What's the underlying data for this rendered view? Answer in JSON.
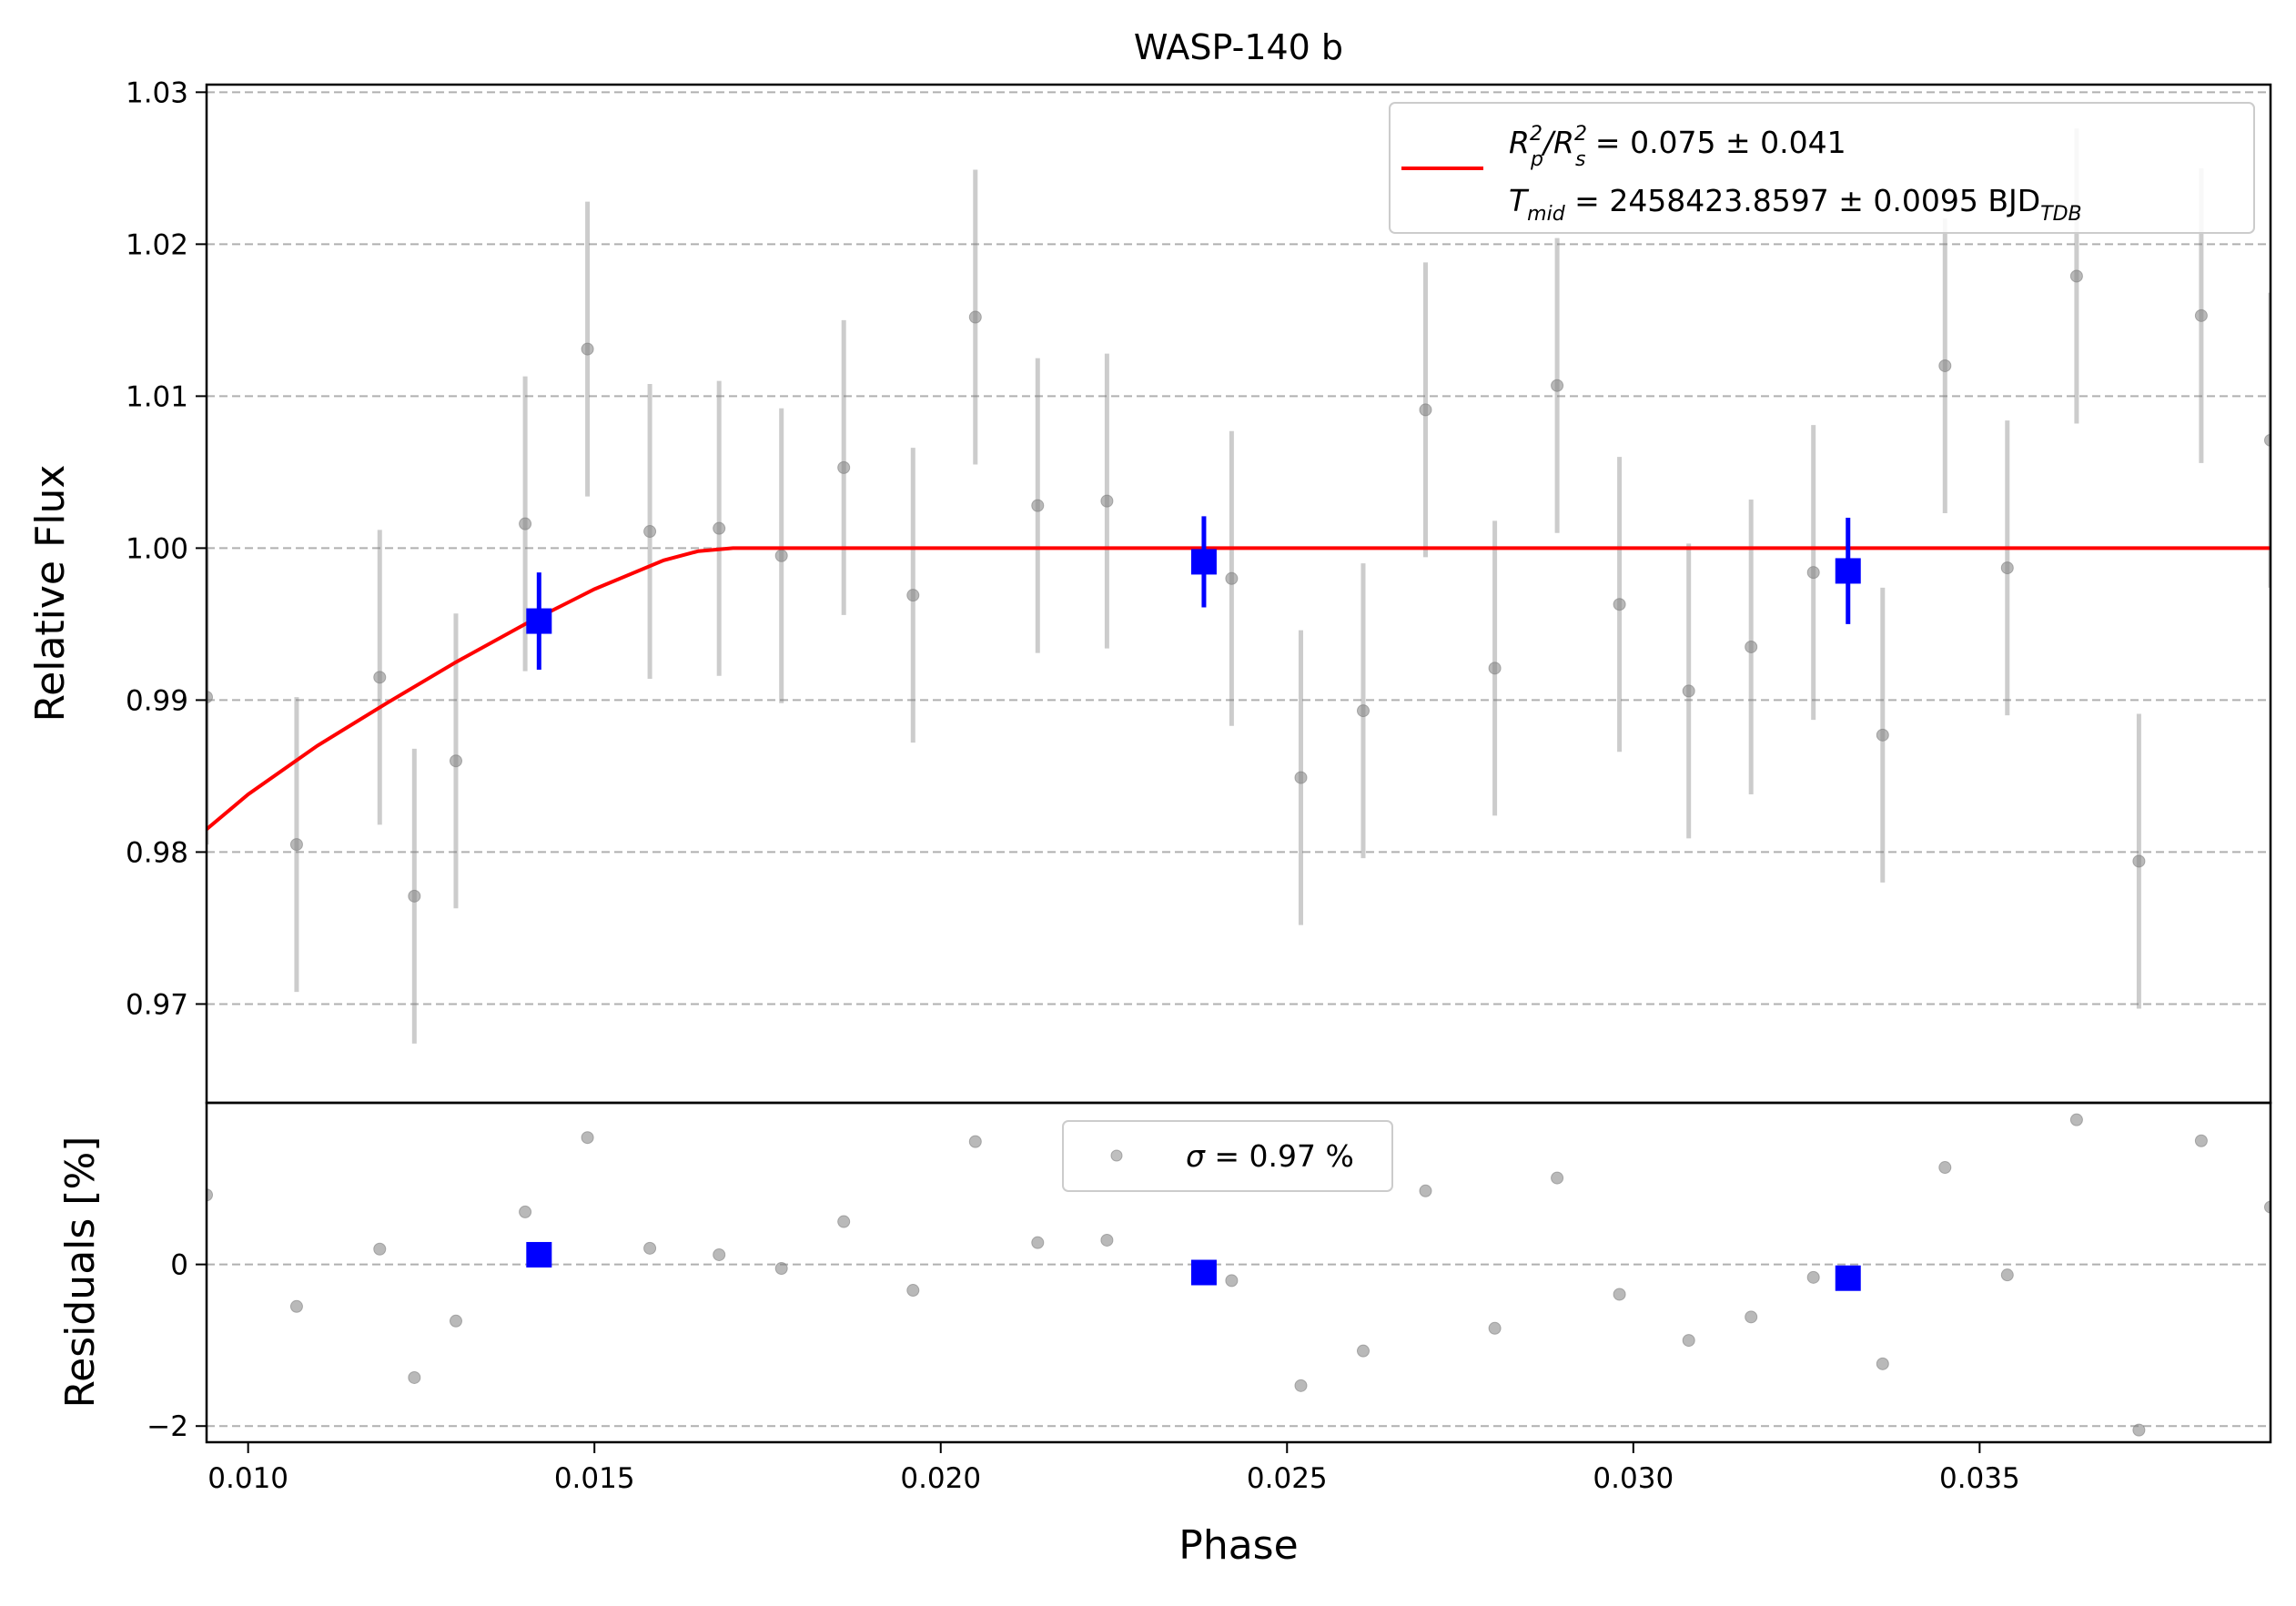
{
  "chart_data": {
    "type": "scatter",
    "title": "WASP-140 b",
    "xlabel": "Phase",
    "xlim": [
      0.0094,
      0.0392
    ],
    "xticks": [
      "0.010",
      "0.015",
      "0.020",
      "0.025",
      "0.030",
      "0.035"
    ],
    "xtick_values": [
      0.01,
      0.015,
      0.02,
      0.025,
      0.03,
      0.035
    ],
    "top_panel": {
      "ylabel": "Relative Flux",
      "ylim": [
        0.9635,
        1.0305
      ],
      "yticks": [
        "0.97",
        "0.98",
        "0.99",
        "1.00",
        "1.01",
        "1.02",
        "1.03"
      ],
      "ytick_values": [
        0.97,
        0.98,
        0.99,
        1.0,
        1.01,
        1.02,
        1.03
      ],
      "grid": "horizontal dashed",
      "legend": {
        "placement": "top-right",
        "line1": {
          "main": "R",
          "sup1": "2",
          "sub1": "p",
          "slash": "/R",
          "sup2": "2",
          "sub2": "s",
          "rest": " = 0.075 ± 0.041"
        },
        "line2": {
          "main": "T",
          "sub1": "mid",
          "rest": " = 2458423.8597 ± 0.0095 BJD",
          "sub2": "TDB"
        }
      },
      "model_color": "#ff0000",
      "raw_color": "#808080",
      "binned_color": "#0000ff",
      "model": {
        "x": [
          0.0094,
          0.01,
          0.011,
          0.012,
          0.013,
          0.014,
          0.015,
          0.016,
          0.0165,
          0.017,
          0.0392
        ],
        "y": [
          0.9815,
          0.9838,
          0.987,
          0.9898,
          0.9925,
          0.995,
          0.9973,
          0.9992,
          0.9998,
          1.0,
          1.0
        ]
      },
      "raw": {
        "x": [
          0.0094,
          0.0107,
          0.0119,
          0.0124,
          0.013,
          0.014,
          0.0149,
          0.0158,
          0.0168,
          0.0177,
          0.0186,
          0.0196,
          0.0205,
          0.0214,
          0.0224,
          0.0242,
          0.0252,
          0.0261,
          0.027,
          0.028,
          0.0289,
          0.0298,
          0.0308,
          0.0317,
          0.0326,
          0.0336,
          0.0345,
          0.0354,
          0.0364,
          0.0373,
          0.0382,
          0.0392
        ],
        "y": [
          0.9902,
          0.9805,
          0.9915,
          0.9771,
          0.986,
          1.0016,
          1.0131,
          1.0011,
          1.0013,
          0.9995,
          1.0053,
          0.9969,
          1.0152,
          1.0028,
          1.0031,
          0.998,
          0.9849,
          0.9893,
          1.0091,
          0.9921,
          1.0107,
          0.9963,
          0.9906,
          0.9935,
          0.9984,
          0.9877,
          1.012,
          0.9987,
          1.0179,
          0.9794,
          1.0153,
          1.0071
        ],
        "err": 0.0097
      },
      "binned": {
        "x": [
          0.0142,
          0.0238,
          0.0331
        ],
        "y": [
          0.9952,
          0.9991,
          0.9985
        ],
        "err": [
          0.0032,
          0.003,
          0.0035
        ]
      }
    },
    "bottom_panel": {
      "ylabel": "Residuals [%]",
      "ylim": [
        -2.2,
        2.0
      ],
      "yticks": [
        "−2",
        "0"
      ],
      "ytick_values": [
        -2,
        0
      ],
      "legend": {
        "placement": "top-center",
        "sigma": "σ",
        "text": " = 0.97 %"
      },
      "raw": {
        "x": [
          0.0094,
          0.0107,
          0.0119,
          0.0124,
          0.013,
          0.014,
          0.0149,
          0.0158,
          0.0168,
          0.0177,
          0.0186,
          0.0196,
          0.0205,
          0.0214,
          0.0224,
          0.0242,
          0.0252,
          0.0261,
          0.027,
          0.028,
          0.0289,
          0.0298,
          0.0308,
          0.0317,
          0.0326,
          0.0336,
          0.0345,
          0.0354,
          0.0364,
          0.0373,
          0.0382,
          0.0392
        ],
        "y": [
          0.86,
          -0.52,
          0.19,
          -1.4,
          -0.7,
          0.65,
          1.57,
          0.2,
          0.12,
          -0.05,
          0.53,
          -0.32,
          1.52,
          0.27,
          0.3,
          -0.2,
          -1.5,
          -1.07,
          0.91,
          -0.79,
          1.07,
          -0.37,
          -0.94,
          -0.65,
          -0.16,
          -1.23,
          1.2,
          -0.13,
          1.79,
          -2.05,
          1.53,
          0.71
        ]
      },
      "binned": {
        "x": [
          0.0142,
          0.0238,
          0.0331
        ],
        "y": [
          0.12,
          -0.1,
          -0.17
        ]
      }
    }
  }
}
